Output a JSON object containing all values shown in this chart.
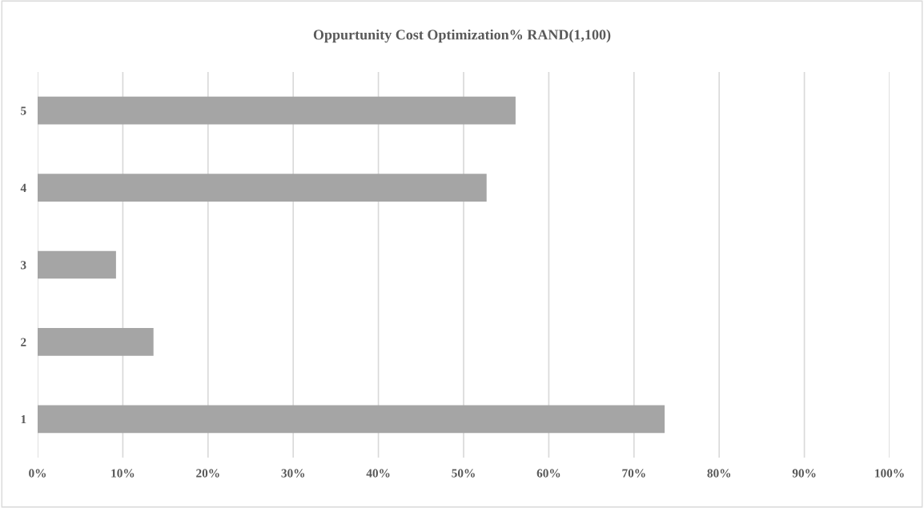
{
  "chart_data": {
    "type": "bar",
    "orientation": "horizontal",
    "title": "Oppurtunity Cost Optimization% RAND(1,100)",
    "categories": [
      "5",
      "4",
      "3",
      "2",
      "1"
    ],
    "values": [
      56.1,
      52.7,
      9.2,
      13.6,
      73.6
    ],
    "color": "#a5a5a5",
    "xlim": [
      0,
      100
    ],
    "xticks": [
      {
        "value": 0,
        "label": "0%"
      },
      {
        "value": 10,
        "label": "10%"
      },
      {
        "value": 20,
        "label": "20%"
      },
      {
        "value": 30,
        "label": "30%"
      },
      {
        "value": 40,
        "label": "40%"
      },
      {
        "value": 50,
        "label": "50%"
      },
      {
        "value": 60,
        "label": "60%"
      },
      {
        "value": 70,
        "label": "70%"
      },
      {
        "value": 80,
        "label": "80%"
      },
      {
        "value": 90,
        "label": "90%"
      },
      {
        "value": 100,
        "label": "100%"
      }
    ],
    "grid": "x"
  }
}
